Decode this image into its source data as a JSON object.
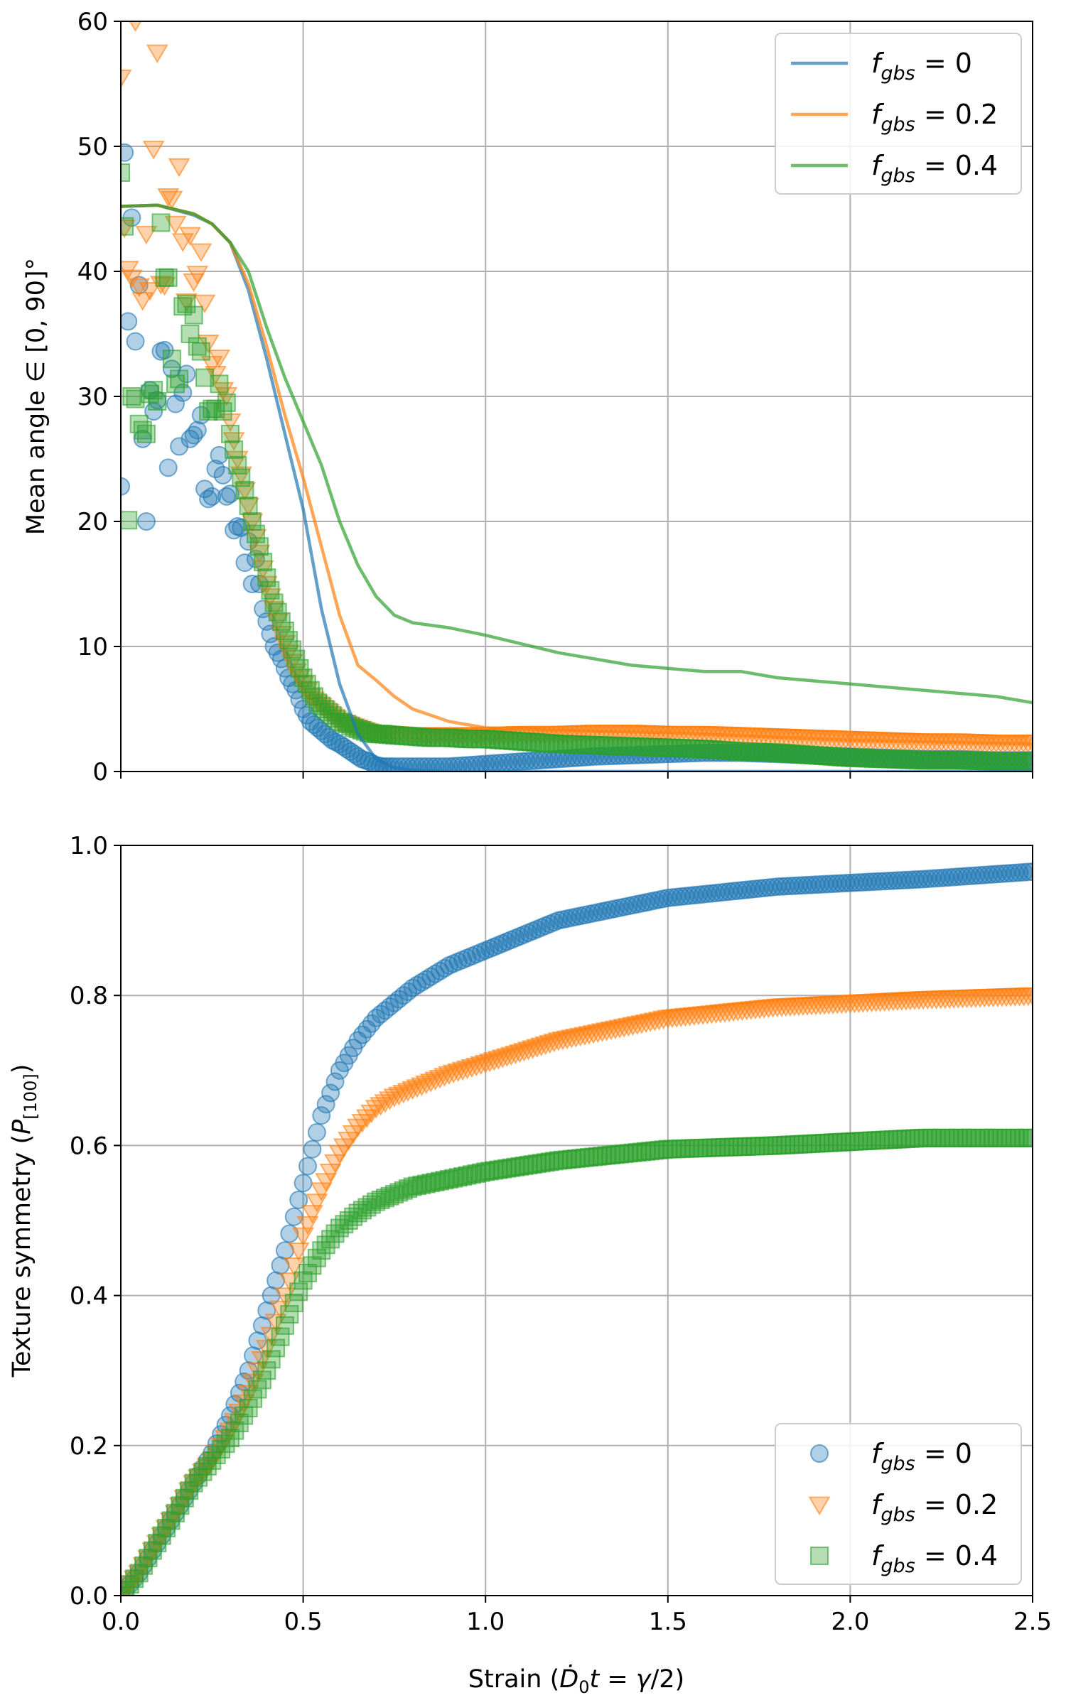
{
  "colors": {
    "fgbs0": "#1f77b4",
    "fgbs02": "#ff7f0e",
    "fgbs04": "#2ca02c",
    "grid": "#b0b0b0"
  },
  "chart_data": [
    {
      "type": "line",
      "ylabel": "Mean angle ∈ [0, 90]°",
      "xlim": [
        0,
        2.5
      ],
      "ylim": [
        0,
        60
      ],
      "xticks": [
        "",
        "",
        "",
        "",
        "",
        ""
      ],
      "yticks": [
        "0",
        "10",
        "20",
        "30",
        "40",
        "50",
        "60"
      ],
      "grid": true,
      "legend_position": "top-right",
      "legend": [
        {
          "label_base": "f",
          "label_sub": "gbs",
          "label_rest": " = 0"
        },
        {
          "label_base": "f",
          "label_sub": "gbs",
          "label_rest": " = 0.2"
        },
        {
          "label_base": "f",
          "label_sub": "gbs",
          "label_rest": " = 0.4"
        }
      ],
      "series": [
        {
          "name": "fgbs = 0",
          "kind": "line",
          "color": "#1f77b4",
          "x": [
            0,
            0.1,
            0.2,
            0.25,
            0.3,
            0.35,
            0.4,
            0.45,
            0.5,
            0.55,
            0.6,
            0.65,
            0.7,
            0.75,
            0.8,
            0.9,
            1.0,
            1.5,
            2.0,
            2.5
          ],
          "y": [
            45.2,
            45.3,
            44.5,
            43.8,
            42.3,
            38.5,
            33,
            27,
            21,
            13,
            7,
            3,
            1,
            0.3,
            0.1,
            0,
            0,
            0,
            0,
            0
          ]
        },
        {
          "name": "fgbs = 0.2",
          "kind": "line",
          "color": "#ff7f0e",
          "x": [
            0,
            0.1,
            0.2,
            0.25,
            0.3,
            0.35,
            0.4,
            0.45,
            0.5,
            0.55,
            0.6,
            0.65,
            0.7,
            0.75,
            0.8,
            0.9,
            1.0,
            1.2,
            1.5,
            2.0,
            2.5
          ],
          "y": [
            45.2,
            45.3,
            44.6,
            43.8,
            42.3,
            39,
            34,
            28.5,
            23.5,
            18,
            12.5,
            8.5,
            7.3,
            6,
            5,
            4,
            3.5,
            3.3,
            3.1,
            2.5,
            2.2
          ]
        },
        {
          "name": "fgbs = 0.4",
          "kind": "line",
          "color": "#2ca02c",
          "x": [
            0,
            0.1,
            0.2,
            0.25,
            0.3,
            0.35,
            0.4,
            0.45,
            0.5,
            0.55,
            0.6,
            0.65,
            0.7,
            0.75,
            0.8,
            0.9,
            1.0,
            1.2,
            1.4,
            1.6,
            1.7,
            1.8,
            2.0,
            2.2,
            2.4,
            2.5
          ],
          "y": [
            45.2,
            45.3,
            44.6,
            43.8,
            42.3,
            40,
            35.5,
            31.5,
            28,
            24.5,
            20,
            16.5,
            14,
            12.5,
            11.9,
            11.5,
            10.9,
            9.5,
            8.5,
            8,
            8,
            7.5,
            7,
            6.5,
            6,
            5.5
          ]
        },
        {
          "name": "fgbs = 0",
          "kind": "scatter",
          "marker": "circle",
          "color": "#1f77b4",
          "x": [
            0,
            0.01,
            0.02,
            0.03,
            0.04,
            0.05,
            0.06,
            0.07,
            0.08,
            0.09,
            0.1,
            0.11,
            0.12,
            0.13,
            0.14,
            0.15,
            0.16,
            0.17,
            0.18,
            0.19,
            0.2,
            0.21,
            0.22,
            0.23,
            0.24,
            0.25,
            0.26,
            0.27,
            0.28,
            0.29,
            0.3,
            0.31,
            0.32,
            0.33,
            0.34,
            0.35,
            0.36,
            0.37,
            0.38,
            0.39,
            0.4,
            0.42,
            0.44,
            0.46,
            0.48,
            0.5,
            0.52,
            0.54,
            0.56,
            0.58,
            0.6,
            0.62,
            0.64,
            0.66,
            0.68,
            0.7,
            0.72,
            0.75,
            0.8,
            0.85,
            0.9,
            0.95,
            1.0,
            1.1,
            1.2,
            1.3,
            1.4,
            1.5,
            1.6,
            1.7,
            1.8,
            1.9,
            2.0,
            2.1,
            2.2,
            2.3,
            2.4,
            2.5
          ],
          "y": [
            22.8,
            49.5,
            36,
            44.3,
            34.4,
            38.9,
            26.6,
            20,
            30.5,
            28.8,
            29.7,
            33.6,
            33.7,
            24.3,
            32.2,
            29.4,
            26,
            30.3,
            31.8,
            26.6,
            26.9,
            27.3,
            28.5,
            22.6,
            21.8,
            22,
            24.2,
            25.3,
            23.7,
            22,
            22.2,
            19.3,
            19.6,
            19.5,
            16.7,
            18.4,
            15,
            17,
            15,
            13,
            12,
            10,
            9,
            7.5,
            6.5,
            5,
            4,
            3.5,
            3,
            2.5,
            2.2,
            1.8,
            1.4,
            1,
            0.8,
            0.5,
            0.4,
            0.4,
            0.4,
            0.4,
            0.4,
            0.5,
            0.6,
            0.8,
            1,
            1.2,
            1.3,
            1.4,
            1.5,
            1.5,
            1.4,
            1.3,
            1.2,
            1.1,
            1,
            1,
            0.9,
            0.9
          ]
        },
        {
          "name": "fgbs = 0.2",
          "kind": "scatter",
          "marker": "triangle-down",
          "color": "#ff7f0e",
          "x": [
            0,
            0.01,
            0.02,
            0.03,
            0.04,
            0.05,
            0.06,
            0.07,
            0.08,
            0.09,
            0.1,
            0.11,
            0.12,
            0.13,
            0.14,
            0.15,
            0.16,
            0.17,
            0.18,
            0.19,
            0.2,
            0.21,
            0.22,
            0.23,
            0.24,
            0.25,
            0.26,
            0.27,
            0.28,
            0.29,
            0.3,
            0.32,
            0.34,
            0.36,
            0.38,
            0.4,
            0.42,
            0.44,
            0.46,
            0.48,
            0.5,
            0.52,
            0.54,
            0.56,
            0.58,
            0.6,
            0.62,
            0.64,
            0.66,
            0.68,
            0.7,
            0.72,
            0.75,
            0.8,
            0.85,
            0.9,
            0.95,
            1.0,
            1.1,
            1.2,
            1.3,
            1.4,
            1.5,
            1.6,
            1.7,
            1.8,
            1.9,
            2.0,
            2.1,
            2.2,
            2.3,
            2.4,
            2.5
          ],
          "y": [
            55.5,
            43.5,
            40.2,
            39.5,
            60,
            38.8,
            37.7,
            43,
            38.5,
            49.8,
            57.5,
            39,
            38.9,
            46,
            45.8,
            43.8,
            48.4,
            42.4,
            37.6,
            42.9,
            39.2,
            39.8,
            41.6,
            37.5,
            34.3,
            32.6,
            31.8,
            33.1,
            30.5,
            30.1,
            28,
            25,
            22.5,
            20,
            17.5,
            15,
            13,
            11,
            9.5,
            8,
            7,
            6,
            5.5,
            5,
            4.5,
            4,
            3.8,
            3.6,
            3.4,
            3.2,
            3,
            3,
            3,
            2.9,
            2.9,
            2.9,
            2.9,
            2.9,
            3,
            3,
            3.1,
            3.1,
            3,
            3,
            2.9,
            2.8,
            2.7,
            2.6,
            2.5,
            2.4,
            2.4,
            2.3,
            2.3
          ]
        },
        {
          "name": "fgbs = 0.4",
          "kind": "scatter",
          "marker": "square",
          "color": "#2ca02c",
          "x": [
            0,
            0.01,
            0.02,
            0.03,
            0.04,
            0.05,
            0.06,
            0.07,
            0.08,
            0.09,
            0.1,
            0.11,
            0.12,
            0.13,
            0.14,
            0.15,
            0.16,
            0.17,
            0.18,
            0.19,
            0.2,
            0.21,
            0.22,
            0.23,
            0.24,
            0.25,
            0.26,
            0.27,
            0.28,
            0.29,
            0.3,
            0.32,
            0.34,
            0.36,
            0.38,
            0.4,
            0.42,
            0.44,
            0.46,
            0.48,
            0.5,
            0.52,
            0.54,
            0.56,
            0.58,
            0.6,
            0.62,
            0.64,
            0.66,
            0.68,
            0.7,
            0.72,
            0.75,
            0.8,
            0.85,
            0.9,
            0.95,
            1.0,
            1.1,
            1.2,
            1.3,
            1.4,
            1.5,
            1.6,
            1.7,
            1.8,
            1.9,
            2.0,
            2.1,
            2.2,
            2.3,
            2.4,
            2.5
          ],
          "y": [
            47.9,
            43.6,
            20.1,
            30,
            29.8,
            27.8,
            27.3,
            27,
            30.2,
            30.5,
            29.6,
            43.9,
            39.5,
            39.5,
            33,
            31,
            31.4,
            37.2,
            37.4,
            35,
            36.5,
            34,
            33.6,
            31.5,
            28.8,
            29,
            29,
            31,
            28.8,
            29.5,
            27,
            24.5,
            22.5,
            20,
            18,
            15.5,
            13.5,
            12,
            10.5,
            9,
            7.5,
            6.5,
            5.5,
            5,
            4.5,
            4,
            3.8,
            3.5,
            3.3,
            3.1,
            3,
            3,
            2.9,
            2.8,
            2.7,
            2.7,
            2.6,
            2.6,
            2.4,
            2.2,
            2.1,
            2,
            1.9,
            1.8,
            1.6,
            1.5,
            1.3,
            1.1,
            1,
            0.9,
            0.9,
            0.8,
            0.8
          ]
        }
      ]
    },
    {
      "type": "scatter",
      "xlabel": "Strain (Ḋ₀t = γ/2)",
      "ylabel": "Texture symmetry (P[100])",
      "xlim": [
        0,
        2.5
      ],
      "ylim": [
        0,
        1.0
      ],
      "xticks": [
        "0.0",
        "0.5",
        "1.0",
        "1.5",
        "2.0",
        "2.5"
      ],
      "yticks": [
        "0.0",
        "0.2",
        "0.4",
        "0.6",
        "0.8",
        "1.0"
      ],
      "grid": true,
      "legend_position": "bottom-right",
      "legend": [
        {
          "label_base": "f",
          "label_sub": "gbs",
          "label_rest": " = 0"
        },
        {
          "label_base": "f",
          "label_sub": "gbs",
          "label_rest": " = 0.2"
        },
        {
          "label_base": "f",
          "label_sub": "gbs",
          "label_rest": " = 0.4"
        }
      ],
      "series": [
        {
          "name": "fgbs = 0",
          "kind": "scatter",
          "marker": "circle",
          "color": "#1f77b4",
          "x": [
            0,
            0.05,
            0.1,
            0.15,
            0.2,
            0.25,
            0.3,
            0.35,
            0.4,
            0.45,
            0.5,
            0.55,
            0.6,
            0.65,
            0.7,
            0.75,
            0.8,
            0.9,
            1.0,
            1.2,
            1.5,
            1.8,
            2.0,
            2.2,
            2.5
          ],
          "y": [
            0,
            0.03,
            0.07,
            0.11,
            0.15,
            0.19,
            0.24,
            0.3,
            0.38,
            0.46,
            0.55,
            0.64,
            0.7,
            0.74,
            0.77,
            0.79,
            0.81,
            0.84,
            0.86,
            0.9,
            0.93,
            0.945,
            0.95,
            0.955,
            0.965
          ]
        },
        {
          "name": "fgbs = 0.2",
          "kind": "scatter",
          "marker": "triangle-down",
          "color": "#ff7f0e",
          "x": [
            0,
            0.05,
            0.1,
            0.15,
            0.2,
            0.25,
            0.3,
            0.35,
            0.4,
            0.45,
            0.5,
            0.55,
            0.6,
            0.65,
            0.7,
            0.75,
            0.8,
            0.9,
            1.0,
            1.2,
            1.5,
            1.8,
            2.0,
            2.2,
            2.5
          ],
          "y": [
            0,
            0.03,
            0.07,
            0.11,
            0.15,
            0.18,
            0.22,
            0.27,
            0.33,
            0.4,
            0.48,
            0.54,
            0.59,
            0.625,
            0.65,
            0.665,
            0.675,
            0.695,
            0.71,
            0.74,
            0.77,
            0.785,
            0.79,
            0.795,
            0.8
          ]
        },
        {
          "name": "fgbs = 0.4",
          "kind": "scatter",
          "marker": "square",
          "color": "#2ca02c",
          "x": [
            0,
            0.05,
            0.1,
            0.15,
            0.2,
            0.25,
            0.3,
            0.35,
            0.4,
            0.45,
            0.5,
            0.55,
            0.6,
            0.65,
            0.7,
            0.75,
            0.8,
            0.9,
            1.0,
            1.2,
            1.5,
            1.8,
            2.0,
            2.2,
            2.5
          ],
          "y": [
            0,
            0.03,
            0.07,
            0.11,
            0.15,
            0.18,
            0.21,
            0.25,
            0.3,
            0.36,
            0.42,
            0.46,
            0.49,
            0.51,
            0.525,
            0.535,
            0.545,
            0.555,
            0.565,
            0.58,
            0.595,
            0.6,
            0.605,
            0.61,
            0.61
          ]
        }
      ]
    }
  ]
}
